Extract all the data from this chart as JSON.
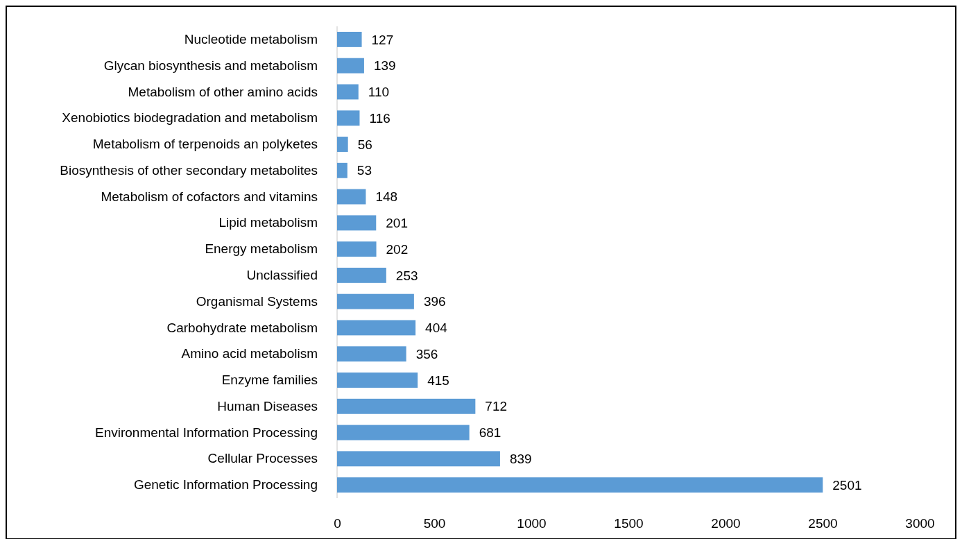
{
  "chart_data": {
    "type": "bar",
    "orientation": "horizontal",
    "categories": [
      "Nucleotide metabolism",
      "Glycan biosynthesis and metabolism",
      "Metabolism of other amino acids",
      "Xenobiotics biodegradation and metabolism",
      "Metabolism of terpenoids an polyketes",
      "Biosynthesis of other secondary metabolites",
      "Metabolism of cofactors and vitamins",
      "Lipid metabolism",
      "Energy metabolism",
      "Unclassified",
      "Organismal Systems",
      "Carbohydrate metabolism",
      "Amino acid metabolism",
      "Enzyme families",
      "Human Diseases",
      "Environmental Information Processing",
      "Cellular Processes",
      "Genetic Information Processing"
    ],
    "values": [
      127,
      139,
      110,
      116,
      56,
      53,
      148,
      201,
      202,
      253,
      396,
      404,
      356,
      415,
      712,
      681,
      839,
      2501
    ],
    "color": "#5b9bd5",
    "xlim": [
      0,
      3000
    ],
    "xticks": [
      0,
      500,
      1000,
      1500,
      2000,
      2500,
      3000
    ],
    "grid": false,
    "data_labels": true
  }
}
